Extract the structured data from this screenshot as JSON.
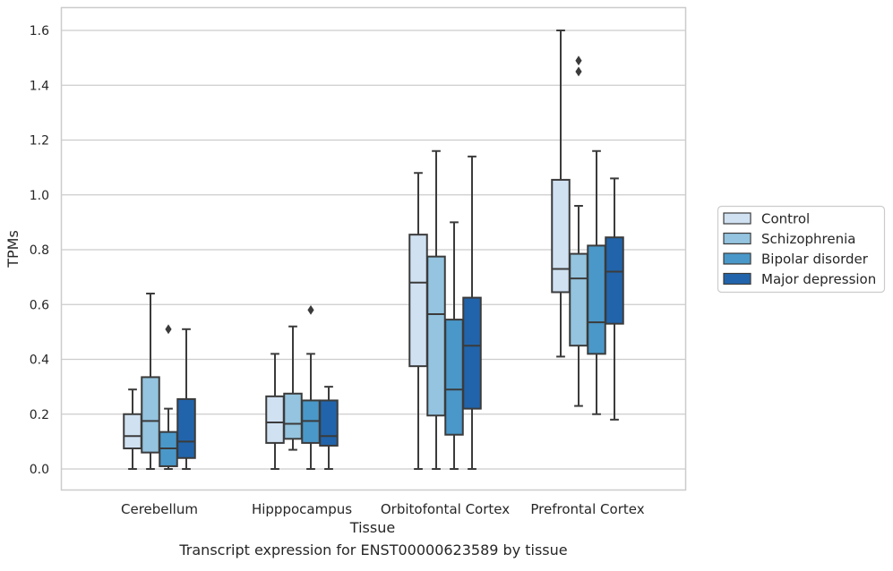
{
  "caption": "Transcript expression for ENST00000623589 by tissue",
  "chart_data": {
    "type": "box",
    "xlabel": "Tissue",
    "ylabel": "TPMs",
    "ylim": [
      -0.08,
      1.68
    ],
    "yticks": [
      0.0,
      0.2,
      0.4,
      0.6,
      0.8,
      1.0,
      1.2,
      1.4,
      1.6
    ],
    "ytick_labels": [
      "0.0",
      "0.2",
      "0.4",
      "0.6",
      "0.8",
      "1.0",
      "1.2",
      "1.4",
      "1.6"
    ],
    "grid": "horizontal",
    "legend_position": "right, outside plot",
    "categories": [
      "Cerebellum",
      "Hipppocampus",
      "Orbitofontal Cortex",
      "Prefrontal Cortex"
    ],
    "series": [
      {
        "name": "Control",
        "color": "#d0e1f2",
        "boxes": [
          {
            "whislo": 0.0,
            "q1": 0.075,
            "med": 0.12,
            "q3": 0.2,
            "whishi": 0.29,
            "fliers": []
          },
          {
            "whislo": 0.0,
            "q1": 0.095,
            "med": 0.17,
            "q3": 0.265,
            "whishi": 0.42,
            "fliers": []
          },
          {
            "whislo": 0.0,
            "q1": 0.375,
            "med": 0.68,
            "q3": 0.855,
            "whishi": 1.08,
            "fliers": []
          },
          {
            "whislo": 0.41,
            "q1": 0.645,
            "med": 0.73,
            "q3": 1.055,
            "whishi": 1.6,
            "fliers": []
          }
        ]
      },
      {
        "name": "Schizophrenia",
        "color": "#94c4df",
        "boxes": [
          {
            "whislo": 0.0,
            "q1": 0.06,
            "med": 0.175,
            "q3": 0.335,
            "whishi": 0.64,
            "fliers": []
          },
          {
            "whislo": 0.07,
            "q1": 0.11,
            "med": 0.165,
            "q3": 0.275,
            "whishi": 0.52,
            "fliers": []
          },
          {
            "whislo": 0.0,
            "q1": 0.195,
            "med": 0.565,
            "q3": 0.775,
            "whishi": 1.16,
            "fliers": []
          },
          {
            "whislo": 0.23,
            "q1": 0.45,
            "med": 0.695,
            "q3": 0.785,
            "whishi": 0.96,
            "fliers": [
              1.45,
              1.49
            ]
          }
        ]
      },
      {
        "name": "Bipolar disorder",
        "color": "#4a98c9",
        "boxes": [
          {
            "whislo": 0.0,
            "q1": 0.01,
            "med": 0.075,
            "q3": 0.135,
            "whishi": 0.22,
            "fliers": [
              0.51
            ]
          },
          {
            "whislo": 0.0,
            "q1": 0.095,
            "med": 0.175,
            "q3": 0.25,
            "whishi": 0.42,
            "fliers": [
              0.58
            ]
          },
          {
            "whislo": 0.0,
            "q1": 0.125,
            "med": 0.29,
            "q3": 0.545,
            "whishi": 0.9,
            "fliers": []
          },
          {
            "whislo": 0.2,
            "q1": 0.42,
            "med": 0.535,
            "q3": 0.815,
            "whishi": 1.16,
            "fliers": []
          }
        ]
      },
      {
        "name": "Major depression",
        "color": "#2164ab",
        "boxes": [
          {
            "whislo": 0.0,
            "q1": 0.04,
            "med": 0.1,
            "q3": 0.255,
            "whishi": 0.51,
            "fliers": []
          },
          {
            "whislo": 0.0,
            "q1": 0.085,
            "med": 0.12,
            "q3": 0.25,
            "whishi": 0.3,
            "fliers": []
          },
          {
            "whislo": 0.0,
            "q1": 0.22,
            "med": 0.45,
            "q3": 0.625,
            "whishi": 1.14,
            "fliers": []
          },
          {
            "whislo": 0.18,
            "q1": 0.53,
            "med": 0.72,
            "q3": 0.845,
            "whishi": 1.06,
            "fliers": []
          }
        ]
      }
    ]
  }
}
